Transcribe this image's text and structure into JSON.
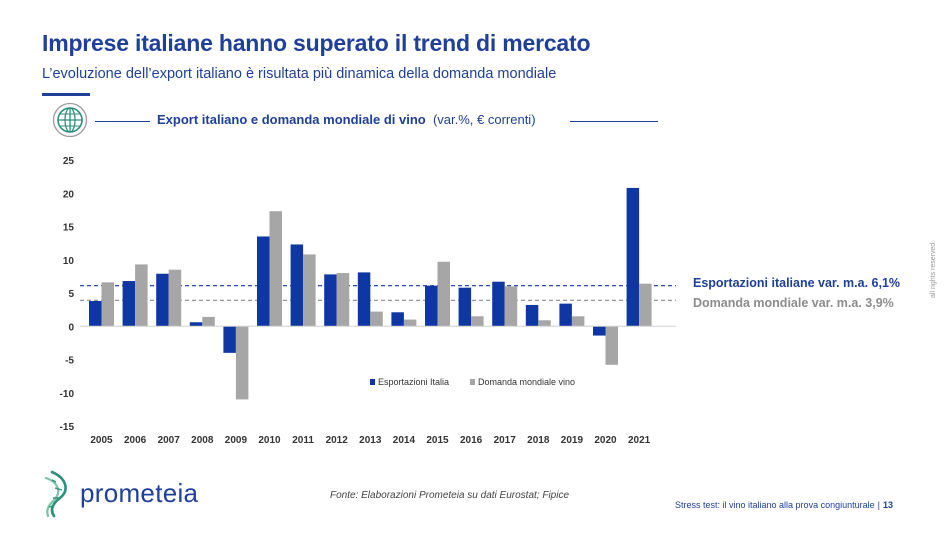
{
  "header": {
    "title": "Imprese italiane hanno superato il trend di mercato",
    "subtitle": "L’evoluzione dell’export italiano è risultata più dinamica della domanda mondiale"
  },
  "chart_header": {
    "title_bold": "Export italiano e domanda mondiale di vino",
    "title_note": "(var.%, € correnti)"
  },
  "chart_data": {
    "type": "bar",
    "title": "Export italiano e domanda mondiale di vino (var.%, € correnti)",
    "categories": [
      "2005",
      "2006",
      "2007",
      "2008",
      "2009",
      "2010",
      "2011",
      "2012",
      "2013",
      "2014",
      "2015",
      "2016",
      "2017",
      "2018",
      "2019",
      "2020",
      "2021"
    ],
    "series": [
      {
        "name": "Esportazioni Italia",
        "color": "#0f37a3",
        "values": [
          3.8,
          6.8,
          7.9,
          0.6,
          -4.0,
          13.5,
          12.3,
          7.8,
          8.1,
          2.1,
          6.1,
          5.8,
          6.7,
          3.2,
          3.4,
          -1.4,
          20.8
        ]
      },
      {
        "name": "Domanda mondiale vino",
        "color": "#a6a6a6",
        "values": [
          6.6,
          9.3,
          8.5,
          1.4,
          -11.0,
          17.3,
          10.8,
          8.0,
          2.2,
          1.0,
          9.7,
          1.5,
          6.0,
          0.9,
          1.5,
          -5.8,
          6.4
        ]
      }
    ],
    "ylim": [
      -15,
      25
    ],
    "yticks": [
      25,
      20,
      15,
      10,
      5,
      0,
      -5,
      -10,
      -15
    ],
    "reference_lines": [
      {
        "label": "Esportazioni italiane var. m.a. 6,1%",
        "value": 6.1,
        "color": "#0f37a3"
      },
      {
        "label": "Domanda mondiale var. m.a. 3,9%",
        "value": 3.9,
        "color": "#8c8c8c"
      }
    ],
    "legend_position": "lower-center",
    "grid": false
  },
  "footer": {
    "logo_text": "prometeia",
    "source": "Fonte: Elaborazioni Prometeia su dati Eurostat; Fipice",
    "caption": "Stress test: il vino italiano alla prova congiunturale",
    "separator": "|",
    "page": "13",
    "rights": "all rights reserved"
  }
}
